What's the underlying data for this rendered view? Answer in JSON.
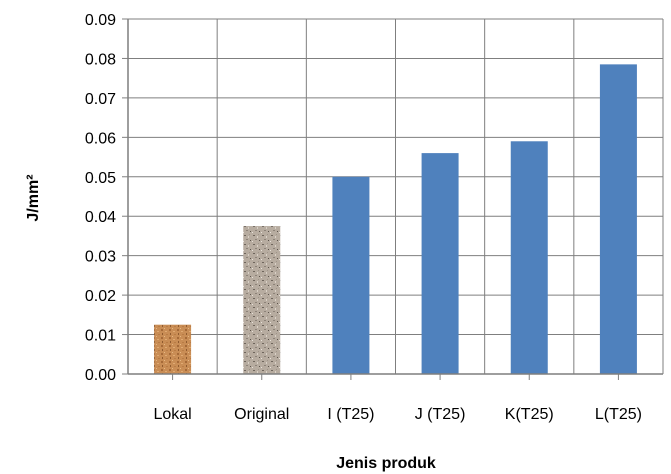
{
  "chart_data": {
    "type": "bar",
    "title": "",
    "xlabel": "Jenis produk",
    "ylabel": "J/mm²",
    "categories": [
      "Lokal",
      "Original",
      "I (T25)",
      "J (T25)",
      "K(T25)",
      "L(T25)"
    ],
    "values": [
      0.0125,
      0.0375,
      0.05,
      0.056,
      0.059,
      0.0785
    ],
    "ylim": [
      0,
      0.09
    ],
    "yticks": [
      "0.00",
      "0.01",
      "0.02",
      "0.03",
      "0.04",
      "0.05",
      "0.06",
      "0.07",
      "0.08",
      "0.09"
    ],
    "grid": true,
    "bar_fills": [
      "texture-cork",
      "texture-granite",
      "#4f81bd",
      "#4f81bd",
      "#4f81bd",
      "#4f81bd"
    ],
    "colors": {
      "bar": "#4f81bd",
      "grid": "#7f7f7f",
      "axis": "#7f7f7f"
    }
  }
}
